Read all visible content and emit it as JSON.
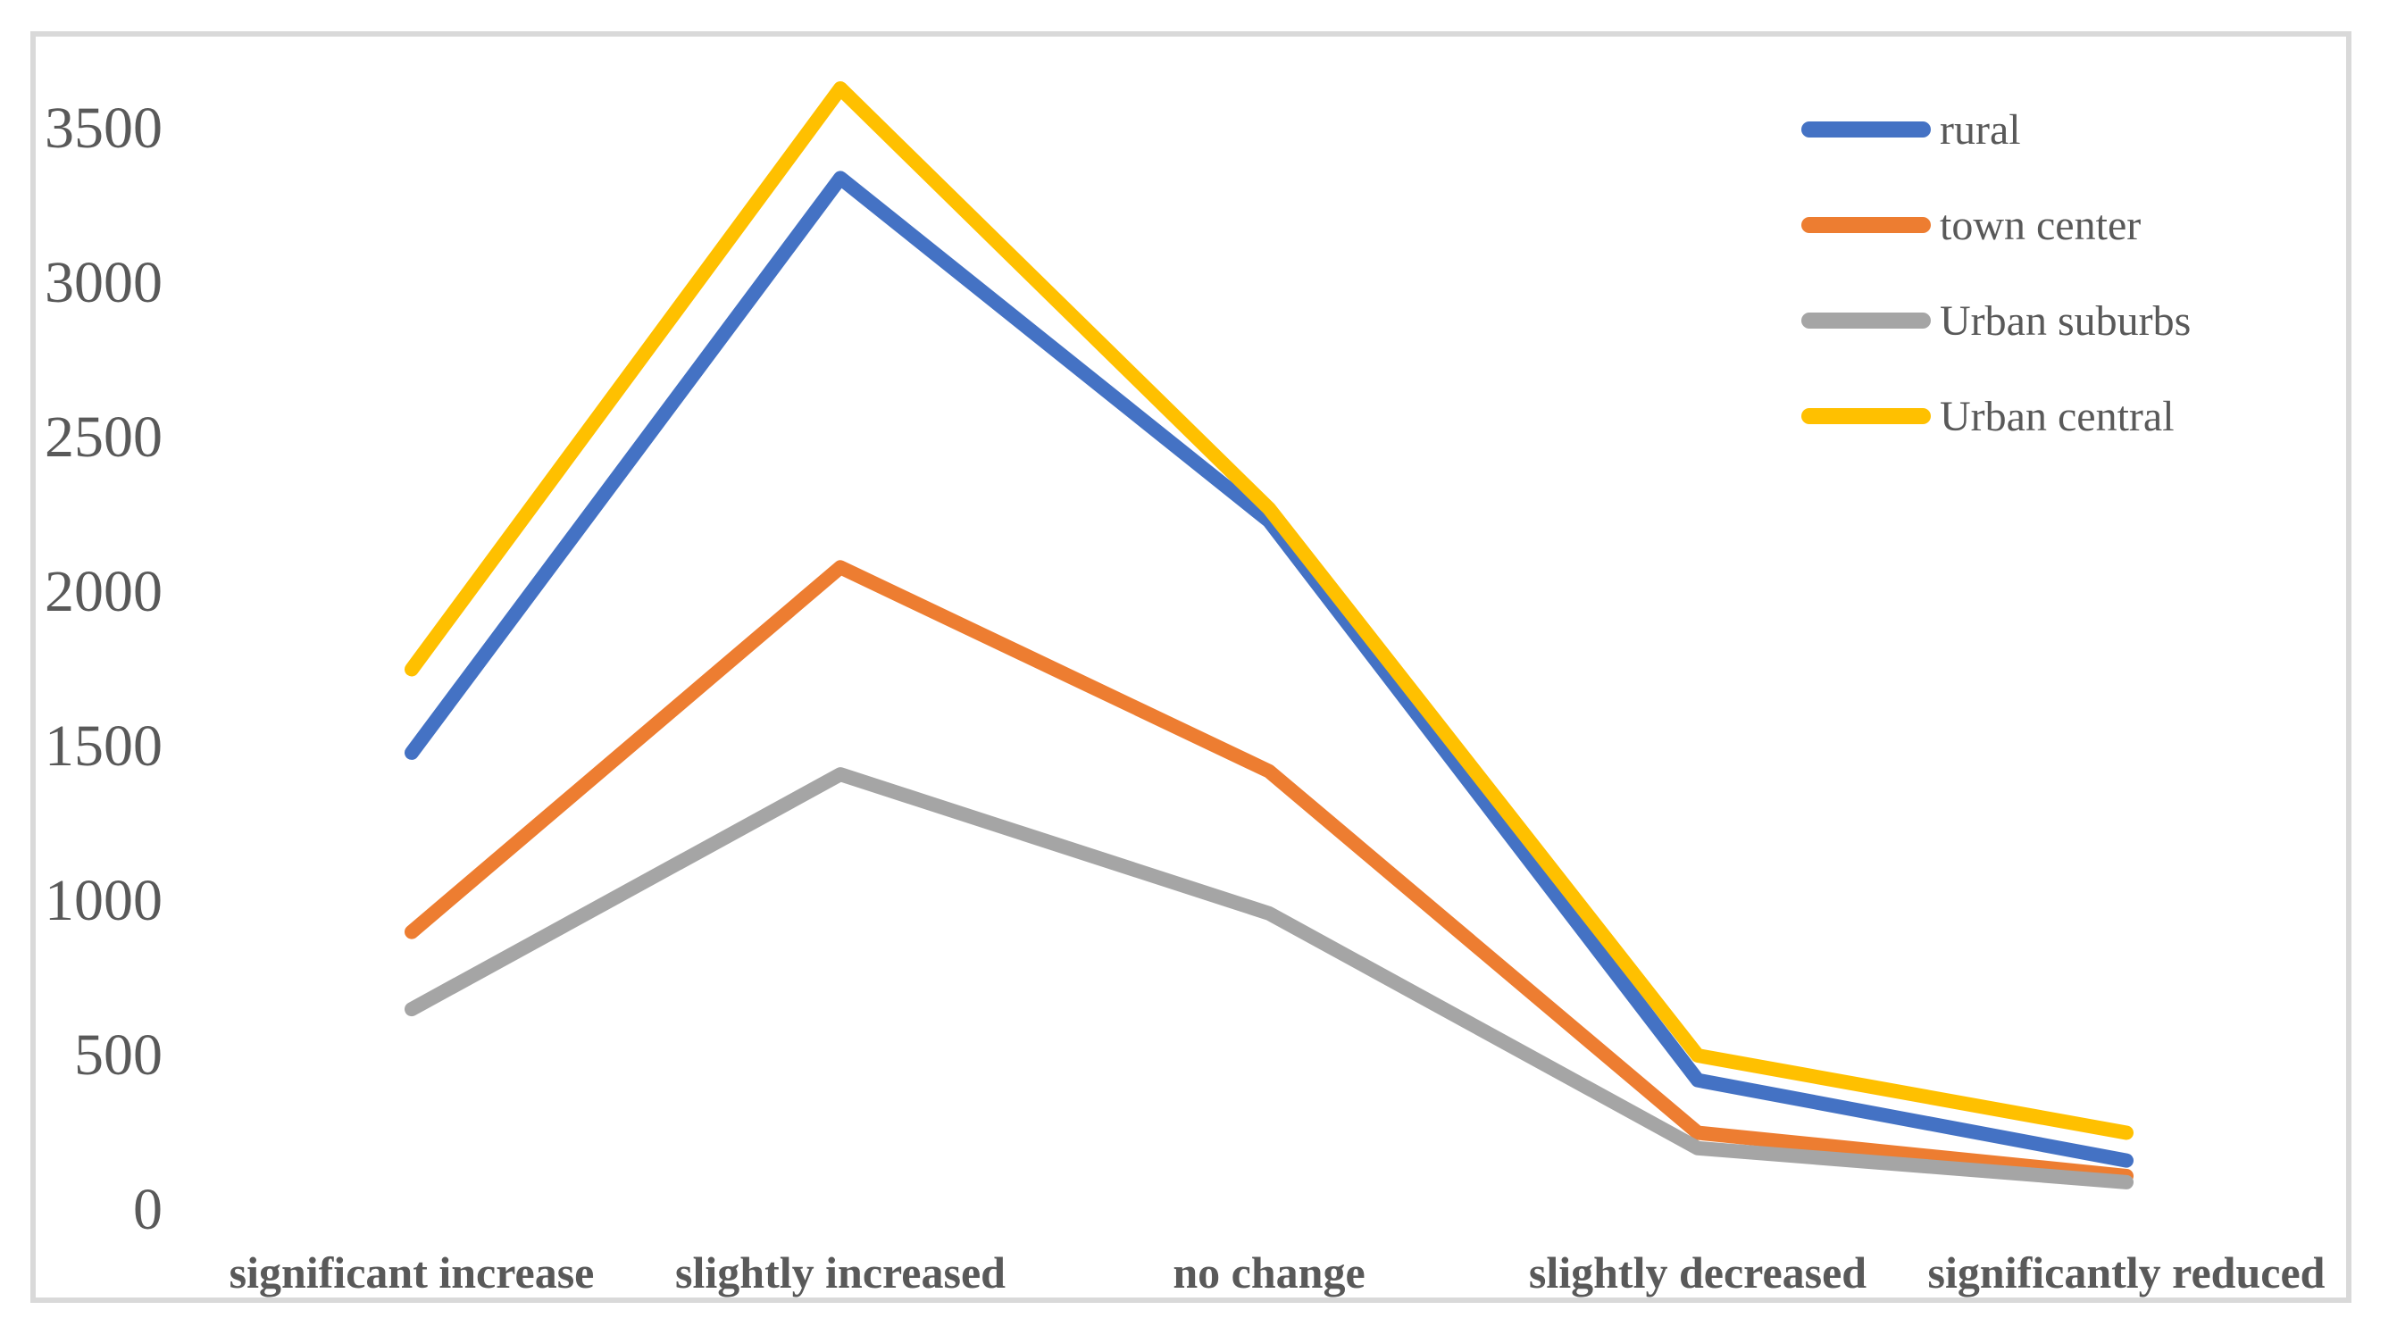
{
  "chart_data": {
    "type": "line",
    "title": "",
    "categories": [
      "significant increase",
      "slightly increased",
      "no change",
      "slightly decreased",
      "significantly reduced"
    ],
    "series": [
      {
        "name": "rural",
        "color": "#4472C4",
        "values": [
          1480,
          3340,
          2230,
          420,
          160
        ]
      },
      {
        "name": "town center",
        "color": "#ED7D31",
        "values": [
          900,
          2080,
          1420,
          250,
          110
        ]
      },
      {
        "name": "Urban suburbs",
        "color": "#A5A5A5",
        "values": [
          650,
          1410,
          960,
          200,
          90
        ]
      },
      {
        "name": "Urban central",
        "color": "#FFC000",
        "values": [
          1750,
          3630,
          2270,
          500,
          250
        ]
      }
    ],
    "yticks": [
      0,
      500,
      1000,
      1500,
      2000,
      2500,
      3000,
      3500
    ],
    "ylim": [
      0,
      3500
    ],
    "grid": false,
    "axis_lines": false,
    "legend_position": "right-top",
    "frame_color": "#D9D9D9",
    "text_color": "#595959",
    "line_width": 16
  }
}
